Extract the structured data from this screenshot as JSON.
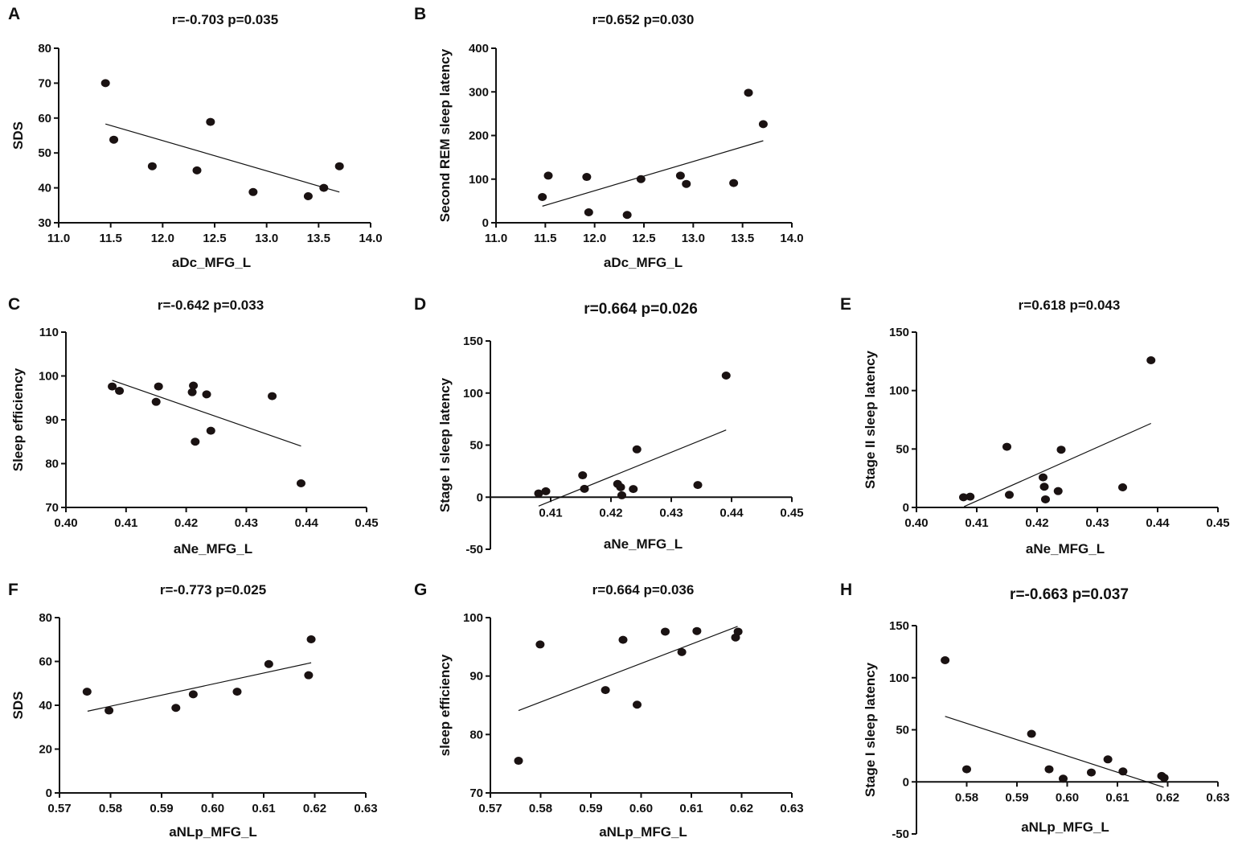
{
  "chart_data": [
    {
      "panel": "A",
      "type": "scatter",
      "title": "r=-0.703 p=0.035",
      "xlabel": "aDc_MFG_L",
      "ylabel": "SDS",
      "xlim": [
        11.0,
        14.0
      ],
      "ylim": [
        30,
        80
      ],
      "xticks": [
        "11.0",
        "11.5",
        "12.0",
        "12.5",
        "13.0",
        "13.5",
        "14.0"
      ],
      "yticks": [
        "30",
        "40",
        "50",
        "60",
        "70",
        "80"
      ],
      "x": [
        11.45,
        11.53,
        11.9,
        12.33,
        12.46,
        12.87,
        13.4,
        13.55,
        13.7
      ],
      "y": [
        70,
        53.8,
        46.2,
        45,
        58.9,
        38.8,
        37.6,
        40,
        46.2
      ],
      "fit": [
        [
          11.45,
          58.3
        ],
        [
          13.7,
          38.8
        ]
      ]
    },
    {
      "panel": "B",
      "type": "scatter",
      "title": "r=0.652 p=0.030",
      "xlabel": "aDc_MFG_L",
      "ylabel": "Second REM sleep latency",
      "xlim": [
        11.0,
        14.0
      ],
      "ylim": [
        0,
        400
      ],
      "xticks": [
        "11.0",
        "11.5",
        "12.0",
        "12.5",
        "13.0",
        "13.5",
        "14.0"
      ],
      "yticks": [
        "0",
        "100",
        "200",
        "300",
        "400"
      ],
      "x": [
        11.47,
        11.53,
        11.92,
        11.94,
        12.33,
        12.47,
        12.87,
        12.93,
        13.41,
        13.56,
        13.71
      ],
      "y": [
        59,
        108,
        105,
        24,
        18,
        100,
        108,
        89,
        91,
        298,
        226
      ],
      "fit": [
        [
          11.47,
          38
        ],
        [
          13.71,
          188
        ]
      ]
    },
    {
      "panel": "C",
      "type": "scatter",
      "title": "r=-0.642 p=0.033",
      "xlabel": "aNe_MFG_L",
      "ylabel": "Sleep efficiency",
      "xlim": [
        0.4,
        0.45
      ],
      "ylim": [
        70,
        110
      ],
      "xticks": [
        "0.40",
        "0.41",
        "0.42",
        "0.43",
        "0.44",
        "0.45"
      ],
      "yticks": [
        "70",
        "80",
        "90",
        "100",
        "110"
      ],
      "x": [
        0.4077,
        0.4089,
        0.4154,
        0.415,
        0.4212,
        0.421,
        0.4234,
        0.4215,
        0.4241,
        0.4343,
        0.4391
      ],
      "y": [
        97.6,
        96.6,
        97.6,
        94.1,
        97.8,
        96.3,
        95.8,
        85.0,
        87.5,
        95.4,
        75.5
      ],
      "fit": [
        [
          0.4077,
          99.0
        ],
        [
          0.4391,
          84.0
        ]
      ]
    },
    {
      "panel": "D",
      "type": "scatter",
      "title": "r=0.664 p=0.026",
      "xlabel": "aNe_MFG_L",
      "ylabel": "Stage I sleep latency",
      "xlim": [
        0.4,
        0.45
      ],
      "ylim": [
        -50,
        150
      ],
      "xticks": [
        "",
        "0.41",
        "0.42",
        "0.43",
        "0.44",
        "0.45"
      ],
      "yticks": [
        "-50",
        "0",
        "50",
        "100",
        "150"
      ],
      "x": [
        0.408,
        0.4092,
        0.4153,
        0.4156,
        0.4211,
        0.4216,
        0.4218,
        0.4237,
        0.4243,
        0.4344,
        0.4391
      ],
      "y": [
        3.6,
        5.7,
        21,
        8,
        12.7,
        9.6,
        1.8,
        7.8,
        45.9,
        11.7,
        116.8
      ],
      "fit": [
        [
          0.408,
          -8.5
        ],
        [
          0.4391,
          64.5
        ]
      ]
    },
    {
      "panel": "E",
      "type": "scatter",
      "title": "r=0.618 p=0.043",
      "xlabel": "aNe_MFG_L",
      "ylabel": "Stage II sleep latency",
      "xlim": [
        0.4,
        0.45
      ],
      "ylim": [
        0,
        150
      ],
      "xticks": [
        "0.40",
        "0.41",
        "0.42",
        "0.43",
        "0.44",
        "0.45"
      ],
      "yticks": [
        "0",
        "50",
        "100",
        "150"
      ],
      "x": [
        0.4078,
        0.4089,
        0.415,
        0.4154,
        0.421,
        0.4212,
        0.4214,
        0.4235,
        0.424,
        0.4342,
        0.4389
      ],
      "y": [
        8.7,
        9.2,
        51.9,
        10.8,
        25.7,
        17.7,
        6.9,
        14,
        49.4,
        17.2,
        125.9
      ],
      "fit": [
        [
          0.4079,
          0.7
        ],
        [
          0.4389,
          71.9
        ]
      ]
    },
    {
      "panel": "F",
      "type": "scatter",
      "title": "r=-0.773 p=0.025",
      "xlabel": "aNLp_MFG_L",
      "ylabel": "SDS",
      "xlim": [
        0.57,
        0.63
      ],
      "ylim": [
        0,
        80
      ],
      "xticks": [
        "0.57",
        "0.58",
        "0.59",
        "0.60",
        "0.61",
        "0.62",
        "0.63"
      ],
      "yticks": [
        "0",
        "20",
        "40",
        "60",
        "80"
      ],
      "x": [
        0.5754,
        0.5797,
        0.5928,
        0.5962,
        0.6048,
        0.611,
        0.6188,
        0.6193
      ],
      "y": [
        46.2,
        37.6,
        38.8,
        45,
        46.2,
        58.8,
        53.7,
        70.1
      ],
      "fit": [
        [
          0.5755,
          37.3
        ],
        [
          0.6193,
          59.4
        ]
      ]
    },
    {
      "panel": "G",
      "type": "scatter",
      "title": "r=0.664 p=0.036",
      "xlabel": "aNLp_MFG_L",
      "ylabel": "sleep efficiency",
      "xlim": [
        0.57,
        0.63
      ],
      "ylim": [
        70,
        100
      ],
      "xticks": [
        "0.57",
        "0.58",
        "0.59",
        "0.60",
        "0.61",
        "0.62",
        "0.63"
      ],
      "yticks": [
        "70",
        "80",
        "90",
        "100"
      ],
      "x": [
        0.5756,
        0.5799,
        0.5929,
        0.5964,
        0.5992,
        0.6048,
        0.6081,
        0.6111,
        0.6188,
        0.6193
      ],
      "y": [
        75.5,
        95.4,
        87.6,
        96.2,
        85.1,
        97.6,
        94.1,
        97.7,
        96.6,
        97.6
      ],
      "fit": [
        [
          0.5756,
          84.1
        ],
        [
          0.6192,
          98.5
        ]
      ]
    },
    {
      "panel": "H",
      "type": "scatter",
      "title": "r=-0.663 p=0.037",
      "xlabel": "aNLp_MFG_L",
      "ylabel": "Stage I sleep latency",
      "xlim": [
        0.57,
        0.63
      ],
      "ylim": [
        -50,
        150
      ],
      "xticks": [
        "",
        "0.58",
        "0.59",
        "0.60",
        "0.61",
        "0.62",
        "0.63"
      ],
      "yticks": [
        "-50",
        "0",
        "50",
        "100",
        "150"
      ],
      "x": [
        0.5757,
        0.58,
        0.5929,
        0.5964,
        0.5992,
        0.6048,
        0.6081,
        0.6111,
        0.6188,
        0.6193
      ],
      "y": [
        116.8,
        12.1,
        46.1,
        12.1,
        3.1,
        9,
        21.6,
        10,
        5.7,
        3.9
      ],
      "fit": [
        [
          0.5757,
          62.9
        ],
        [
          0.6192,
          -5.2
        ]
      ]
    }
  ]
}
